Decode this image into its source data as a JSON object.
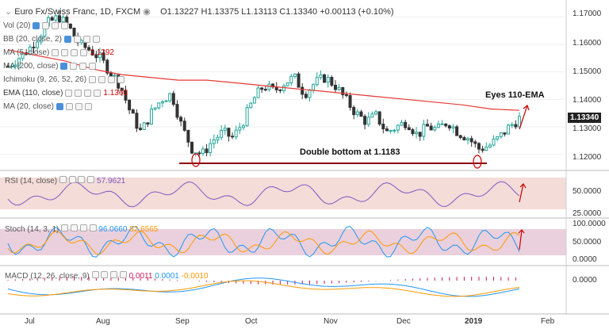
{
  "symbol": {
    "title": "Euro Fx/Swiss Franc, 1D, FXCM",
    "open": "O1.13227",
    "high": "H1.13375",
    "low": "L1.13113",
    "close": "C1.13340",
    "change": "+0.00113 (+0.10%)"
  },
  "indicators": [
    {
      "label": "Vol (20)"
    },
    {
      "label": "BB (20, close, 2)"
    },
    {
      "label": "MA (5, close)",
      "value": "1.1292",
      "color": "#cc0000"
    },
    {
      "label": "MA (200, close)"
    },
    {
      "label": "Ichimoku (9, 26, 52, 26)"
    },
    {
      "label": "EMA (110, close)",
      "value": "1.1360",
      "color": "#cc0000"
    },
    {
      "label": "MA (20, close)"
    }
  ],
  "annotations": {
    "eyes_ema": "Eyes 110-EMA",
    "double_bottom": "Double bottom at 1.1183"
  },
  "price_axis": {
    "ticks": [
      "1.17000",
      "1.16000",
      "1.15000",
      "1.14000",
      "1.13000",
      "1.12000"
    ],
    "last_price": "1.13340"
  },
  "time_axis": {
    "ticks": [
      "Jul",
      "Aug",
      "Sep",
      "Oct",
      "Nov",
      "Dec",
      "2019",
      "Feb"
    ]
  },
  "rsi": {
    "label": "RSI (14, close)",
    "value": "57.9621",
    "ticks": [
      "50.0000",
      "25.0000"
    ]
  },
  "stoch": {
    "label": "Stoch (14, 3, 1)",
    "k": "96.0660",
    "d": "82.6565",
    "ticks": [
      "100.0000",
      "50.0000",
      "0.0000"
    ]
  },
  "macd": {
    "label": "MACD (12, 26, close, 9)",
    "hist": "0.0011",
    "macd": "0.0001",
    "signal": "-0.0010",
    "ticks": [
      "0.0000"
    ]
  },
  "colors": {
    "up": "#26a69a",
    "down": "#333333",
    "ema": "#e53935",
    "annot": "#cc0000",
    "rsi": "#7e57c2",
    "stoch_k": "#2196f3",
    "stoch_d": "#ff9800"
  },
  "chart_data": {
    "type": "candlestick",
    "x": [
      "Jul",
      "Aug",
      "Sep",
      "Oct",
      "Nov",
      "Dec",
      "2019",
      "Feb"
    ],
    "ylim": [
      1.115,
      1.175
    ],
    "close_path": [
      1.152,
      1.155,
      1.158,
      1.163,
      1.168,
      1.17,
      1.166,
      1.16,
      1.158,
      1.155,
      1.15,
      1.145,
      1.135,
      1.128,
      1.135,
      1.14,
      1.142,
      1.13,
      1.122,
      1.12,
      1.125,
      1.128,
      1.126,
      1.132,
      1.14,
      1.145,
      1.143,
      1.146,
      1.148,
      1.142,
      1.146,
      1.148,
      1.145,
      1.14,
      1.135,
      1.132,
      1.134,
      1.128,
      1.13,
      1.132,
      1.127,
      1.13,
      1.129,
      1.132,
      1.128,
      1.126,
      1.122,
      1.123,
      1.126,
      1.13,
      1.133
    ],
    "ema110": [
      1.158,
      1.156,
      1.154,
      1.151,
      1.149,
      1.148,
      1.147,
      1.147,
      1.146,
      1.145,
      1.144,
      1.143,
      1.142,
      1.141,
      1.14,
      1.139,
      1.138,
      1.1365,
      1.136
    ],
    "double_bottom_level": 1.1183,
    "last_close": 1.1334
  }
}
